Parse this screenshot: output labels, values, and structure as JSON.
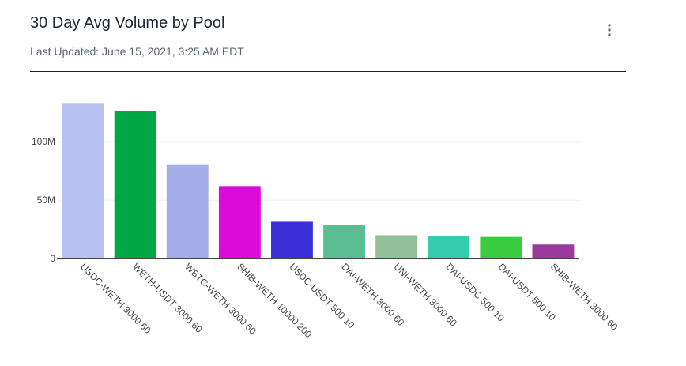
{
  "header": {
    "title": "30 Day Avg Volume by Pool",
    "subtitle": "Last Updated: June 15, 2021, 3:25 AM EDT",
    "menu_icon": "more-vertical-icon"
  },
  "chart_data": {
    "type": "bar",
    "title": "30 Day Avg Volume by Pool",
    "xlabel": "",
    "ylabel": "",
    "categories": [
      "USDC-WETH 3000 60",
      "WETH-USDT 3000 60",
      "WBTC-WETH 3000 60",
      "SHIB-WETH 10000 200",
      "USDC-USDT 500 10",
      "DAI-WETH 3000 60",
      "UNI-WETH 3000 60",
      "DAI-USDC 500 10",
      "DAI-USDT 500 10",
      "SHIB-WETH 3000 60"
    ],
    "values": [
      133000000,
      126000000,
      80000000,
      62000000,
      31500000,
      28500000,
      20000000,
      19000000,
      18500000,
      12000000
    ],
    "colors": [
      "#b7c1f2",
      "#00a845",
      "#a3aee8",
      "#dc09db",
      "#3d2fd8",
      "#5bbe92",
      "#91c195",
      "#33ccad",
      "#39cc3e",
      "#993a9c"
    ],
    "ylim": [
      0,
      140000000
    ],
    "yticks": [
      0,
      50000000,
      100000000
    ],
    "ytick_labels": [
      "0",
      "50M",
      "100M"
    ],
    "grid": true,
    "legend": "none"
  }
}
